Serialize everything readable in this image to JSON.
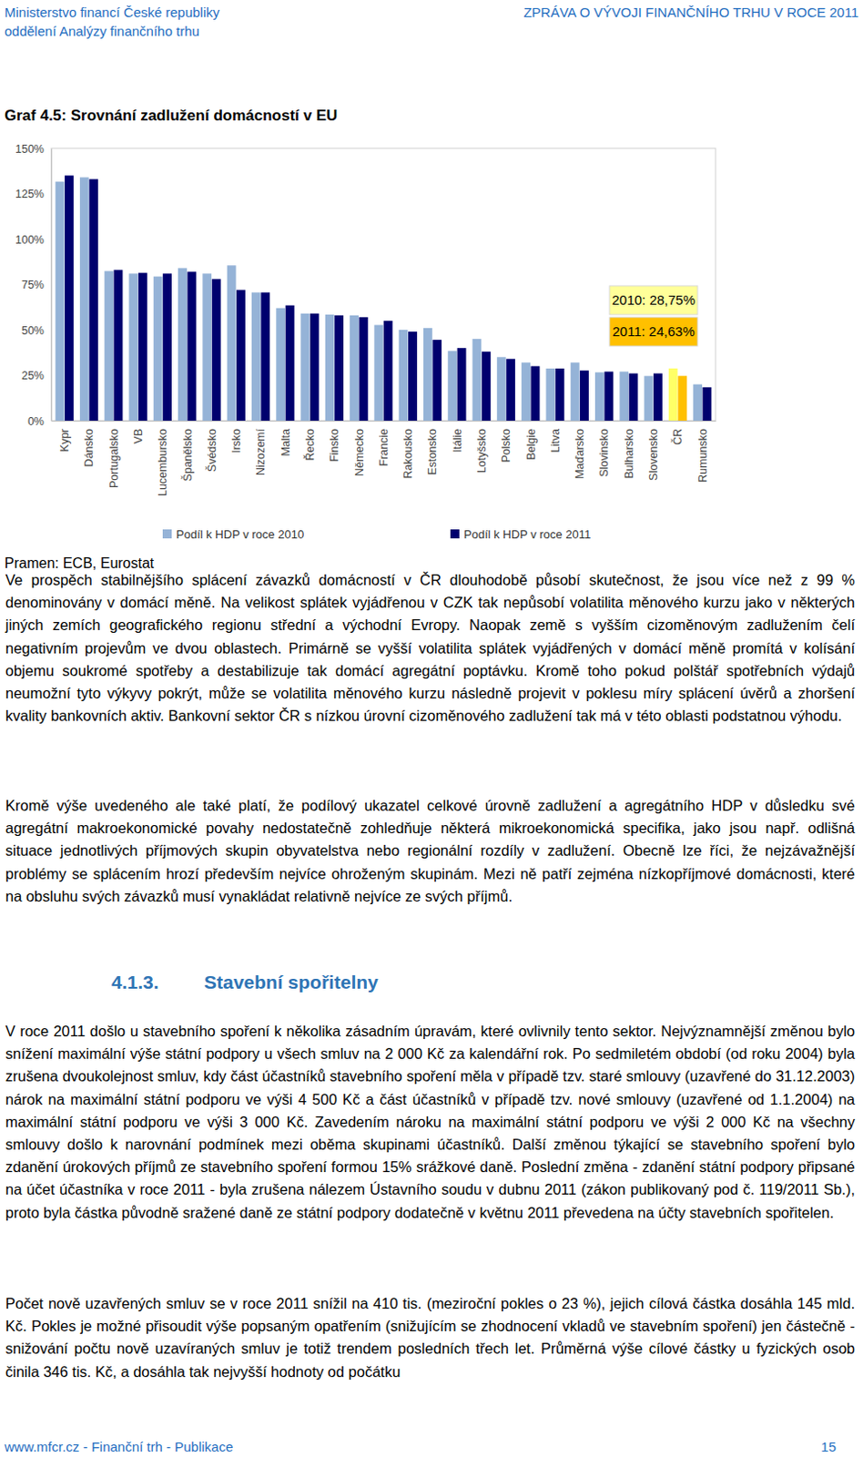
{
  "header": {
    "left": [
      "Ministerstvo financí České republiky",
      "oddělení Analýzy finančního trhu"
    ],
    "right": "ZPRÁVA O VÝVOJI FINANČNÍHO TRHU V ROCE 2011"
  },
  "chart_data": {
    "type": "bar",
    "title": "Graf 4.5: Srovnání zadlužení domácností v EU",
    "source": "Pramen: ECB, Eurostat",
    "categories": [
      "Kypr",
      "Dánsko",
      "Portugalsko",
      "VB",
      "Lucembursko",
      "Španělsko",
      "Švédsko",
      "Irsko",
      "Nizozemí",
      "Malta",
      "Řecko",
      "Finsko",
      "Německo",
      "Francie",
      "Rakousko",
      "Estonsko",
      "Itálie",
      "Lotyšsko",
      "Polsko",
      "Belgie",
      "Litva",
      "Maďarsko",
      "Slovinsko",
      "Bulharsko",
      "Slovensko",
      "ČR",
      "Rumunsko"
    ],
    "series": [
      {
        "name": "Podíl k HDP v roce 2010",
        "color": "#95b3d7",
        "colors": [
          "#95b3d7",
          "#95b3d7",
          "#95b3d7",
          "#95b3d7",
          "#95b3d7",
          "#95b3d7",
          "#95b3d7",
          "#95b3d7",
          "#95b3d7",
          "#95b3d7",
          "#95b3d7",
          "#95b3d7",
          "#95b3d7",
          "#95b3d7",
          "#95b3d7",
          "#95b3d7",
          "#95b3d7",
          "#95b3d7",
          "#95b3d7",
          "#95b3d7",
          "#95b3d7",
          "#95b3d7",
          "#95b3d7",
          "#95b3d7",
          "#95b3d7",
          "#ffff66",
          "#95b3d7"
        ],
        "values": [
          131.6,
          134,
          82.4,
          81,
          79.4,
          84,
          81,
          85.5,
          70.6,
          62,
          59,
          58.4,
          58,
          52.7,
          50,
          51,
          38.4,
          45,
          35,
          32,
          28.7,
          32,
          26.6,
          27,
          24.6,
          28.75,
          20
        ]
      },
      {
        "name": "Podíl k HDP v roce 2011",
        "color": "#00006e",
        "colors": [
          "#00006e",
          "#00006e",
          "#00006e",
          "#00006e",
          "#00006e",
          "#00006e",
          "#00006e",
          "#00006e",
          "#00006e",
          "#00006e",
          "#00006e",
          "#00006e",
          "#00006e",
          "#00006e",
          "#00006e",
          "#00006e",
          "#00006e",
          "#00006e",
          "#00006e",
          "#00006e",
          "#00006e",
          "#00006e",
          "#00006e",
          "#00006e",
          "#00006e",
          "#ffc000",
          "#00006e"
        ],
        "values": [
          135,
          133,
          83,
          81.4,
          81,
          82,
          78,
          72,
          70.6,
          63.5,
          59,
          58,
          57,
          55,
          49,
          44.5,
          40,
          38,
          34,
          30,
          28.7,
          27.6,
          27,
          26,
          26,
          24.63,
          18.4
        ]
      }
    ],
    "ylim": [
      0,
      150
    ],
    "yticks": [
      {
        "value": 0,
        "label": "0%"
      },
      {
        "value": 25,
        "label": "25%"
      },
      {
        "value": 50,
        "label": "50%"
      },
      {
        "value": 75,
        "label": "75%"
      },
      {
        "value": 100,
        "label": "100%"
      },
      {
        "value": 125,
        "label": "125%"
      },
      {
        "value": 150,
        "label": "150%"
      }
    ],
    "grid": false,
    "legend": "bottom",
    "annotations": [
      {
        "text": "2010: 28,75%",
        "color": "#ffff99"
      },
      {
        "text": "2011: 24,63%",
        "color": "#ffc000"
      }
    ]
  },
  "body": {
    "sections": [
      {
        "paragraphs": [
          "Ve prospěch stabilnějšího splácení závazků domácností v ČR dlouhodobě působí skutečnost, že jsou více než z 99 % denominovány v domácí měně. Na velikost splátek vyjádřenou v CZK tak nepůsobí volatilita měnového kurzu jako v některých jiných zemích geografického regionu střední a východní Evropy. Naopak země s vyšším cizoměnovým zadlužením čelí negativním projevům ve dvou oblastech. Primárně se vyšší volatilita splátek vyjádřených v domácí měně promítá v kolísání objemu soukromé spotřeby a destabilizuje tak domácí agregátní poptávku. Kromě toho pokud polštář spotřebních výdajů neumožní tyto výkyvy pokrýt, může se volatilita měnového kurzu následně projevit v poklesu míry splácení úvěrů a zhoršení kvality bankovních aktiv. Bankovní sektor ČR s nízkou úrovní cizoměnového zadlužení tak má v této oblasti podstatnou výhodu.",
          "Kromě výše uvedeného ale také platí, že podílový ukazatel celkové úrovně zadlužení a agregátního HDP v důsledku své agregátní makroekonomické povahy nedostatečně zohledňuje některá mikroekonomická specifika, jako jsou např. odlišná situace jednotlivých příjmových skupin obyvatelstva nebo regionální rozdíly v zadlužení. Obecně lze říci, že nejzávažnější problémy se splácením hrozí především nejvíce ohroženým skupinám. Mezi ně patří zejména nízkopříjmové domácnosti, které na obsluhu svých závazků musí vynakládat relativně nejvíce ze svých příjmů."
        ]
      },
      {
        "number": "4.1.3.",
        "title": "Stavební spořitelny",
        "paragraphs": [
          "V roce 2011 došlo u stavebního spoření k několika zásadním úpravám, které ovlivnily tento sektor. Nejvýznamnější změnou bylo snížení maximální výše státní podpory u všech smluv na 2 000 Kč za kalendářní rok. Po sedmiletém období (od roku 2004) byla zrušena dvoukolejnost smluv, kdy část účastníků stavebního spoření měla v případě tzv. staré smlouvy (uzavřené do 31.12.2003) nárok na maximální státní podporu ve výši 4 500 Kč a část účastníků v případě tzv. nové smlouvy (uzavřené od 1.1.2004) na maximální státní podporu ve výši 3 000 Kč. Zavedením nároku na maximální státní podporu ve výši 2 000 Kč na všechny smlouvy došlo k narovnání podmínek mezi oběma skupinami účastníků. Další změnou týkající se stavebního spoření bylo zdanění úrokových příjmů ze stavebního spoření formou 15% srážkové daně. Poslední změna - zdanění státní podpory připsané na účet účastníka v roce 2011 - byla zrušena nálezem Ústavního soudu v dubnu 2011 (zákon publikovaný pod č. 119/2011 Sb.), proto byla částka původně sražené daně ze státní podpory dodatečně v květnu 2011 převedena na účty stavebních spořitelen.",
          "Počet nově uzavřených smluv se v roce 2011 snížil na 410 tis. (meziroční pokles o 23 %), jejich cílová částka dosáhla 145 mld. Kč. Pokles je možné přisoudit výše popsaným opatřením (snižujícím se zhodnocení vkladů ve stavebním spoření) jen částečně - snižování počtu nově uzavíraných smluv je totiž trendem posledních třech let. Průměrná výše cílové částky u fyzických osob činila 346 tis. Kč, a dosáhla tak nejvyšší hodnoty od počátku"
        ]
      }
    ]
  },
  "footer": {
    "left": "www.mfcr.cz - Finanční trh - Publikace",
    "page": "15"
  }
}
